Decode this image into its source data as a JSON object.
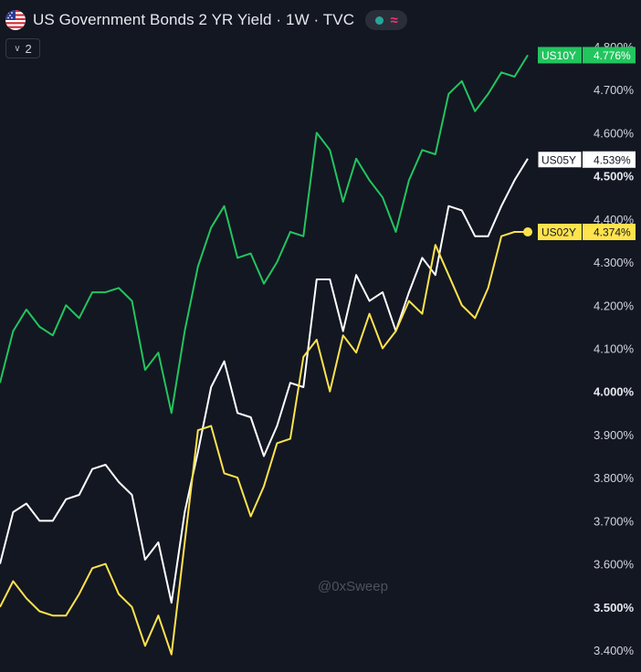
{
  "header": {
    "title": "US Government Bonds 2 YR Yield · 1W · TVC",
    "collapse_count": "2"
  },
  "colors": {
    "background": "#131722",
    "us10y": "#22c55e",
    "us05y": "#ffffff",
    "us02y": "#ffe34d"
  },
  "icons": {
    "flag": "us-flag-icon",
    "status": "market-status-dot-icon",
    "wave": "wave-icon",
    "collapse": "chevron-down-icon"
  },
  "watermark": "@0xSweep",
  "chart_data": {
    "type": "line",
    "title": "US Government Bonds 2 YR Yield · 1W · TVC",
    "ylim": [
      3.38,
      4.8
    ],
    "y_ticks": [
      "4.800%",
      "4.700%",
      "4.600%",
      "4.500%",
      "4.400%",
      "4.300%",
      "4.200%",
      "4.100%",
      "4.000%",
      "3.900%",
      "3.800%",
      "3.700%",
      "3.600%",
      "3.500%",
      "3.400%"
    ],
    "y_tick_values": [
      4.8,
      4.7,
      4.6,
      4.5,
      4.4,
      4.3,
      4.2,
      4.1,
      4.0,
      3.9,
      3.8,
      3.7,
      3.6,
      3.5,
      3.4
    ],
    "y_ticks_bold": [
      "4.500%",
      "4.000%",
      "3.500%"
    ],
    "x_weeks": 55,
    "series": [
      {
        "name": "US10Y",
        "last_label": "4.776%",
        "values": [
          4.02,
          4.14,
          4.19,
          4.15,
          4.13,
          4.2,
          4.17,
          4.23,
          4.23,
          4.24,
          4.21,
          4.05,
          4.09,
          3.95,
          4.14,
          4.29,
          4.38,
          4.43,
          4.31,
          4.32,
          4.25,
          4.3,
          4.37,
          4.36,
          4.6,
          4.56,
          4.44,
          4.54,
          4.49,
          4.45,
          4.37,
          4.49,
          4.56,
          4.55,
          4.69,
          4.72,
          4.65,
          4.69,
          4.74,
          4.73,
          4.78
        ]
      },
      {
        "name": "US05Y",
        "last_label": "4.539%",
        "values": [
          3.6,
          3.72,
          3.74,
          3.7,
          3.7,
          3.75,
          3.76,
          3.82,
          3.83,
          3.79,
          3.76,
          3.61,
          3.65,
          3.51,
          3.72,
          3.86,
          4.01,
          4.07,
          3.95,
          3.94,
          3.85,
          3.92,
          4.02,
          4.01,
          4.26,
          4.26,
          4.14,
          4.27,
          4.21,
          4.23,
          4.14,
          4.23,
          4.31,
          4.27,
          4.43,
          4.42,
          4.36,
          4.36,
          4.43,
          4.49,
          4.54
        ]
      },
      {
        "name": "US02Y",
        "last_label": "4.374%",
        "values": [
          3.5,
          3.56,
          3.52,
          3.49,
          3.48,
          3.48,
          3.53,
          3.59,
          3.6,
          3.53,
          3.5,
          3.41,
          3.48,
          3.39,
          3.65,
          3.91,
          3.92,
          3.81,
          3.8,
          3.71,
          3.78,
          3.88,
          3.89,
          4.08,
          4.12,
          4.0,
          4.13,
          4.09,
          4.18,
          4.1,
          4.14,
          4.21,
          4.18,
          4.34,
          4.27,
          4.2,
          4.17,
          4.24,
          4.36,
          4.37,
          4.37
        ]
      }
    ]
  }
}
